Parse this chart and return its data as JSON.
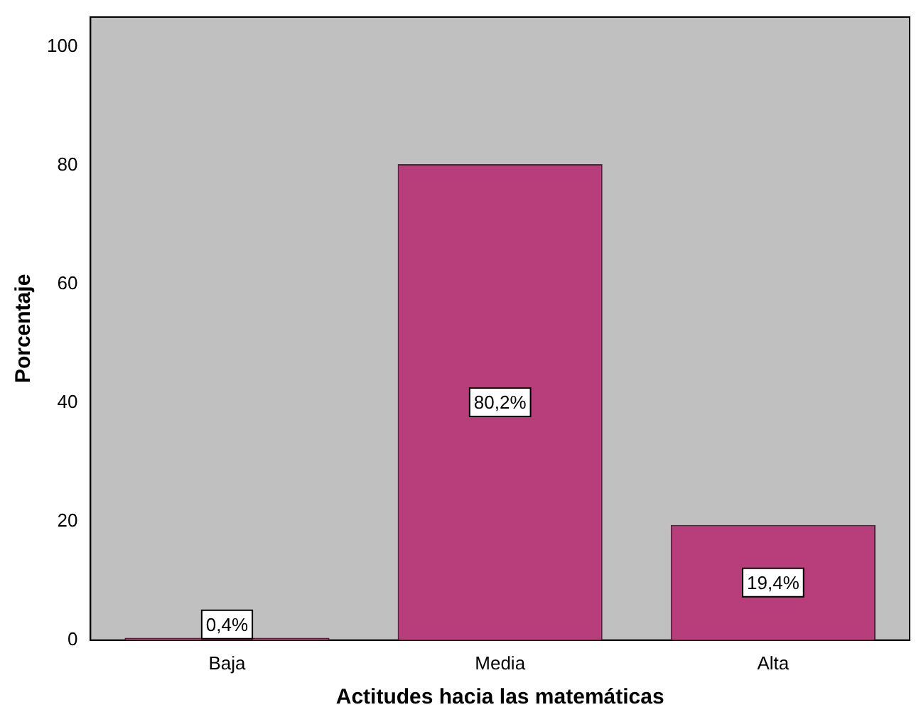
{
  "chart_data": {
    "type": "bar",
    "xlabel": "Actitudes hacia las matemáticas",
    "ylabel": "Porcentaje",
    "categories": [
      "Baja",
      "Media",
      "Alta"
    ],
    "values": [
      0.4,
      80.2,
      19.4
    ],
    "value_labels": [
      "0,4%",
      "80,2%",
      "19,4%"
    ],
    "color": "#b83d7b",
    "ylim": [
      0,
      105
    ],
    "yticks": [
      0,
      20,
      40,
      60,
      80,
      100
    ],
    "grid": false,
    "legend": false
  }
}
